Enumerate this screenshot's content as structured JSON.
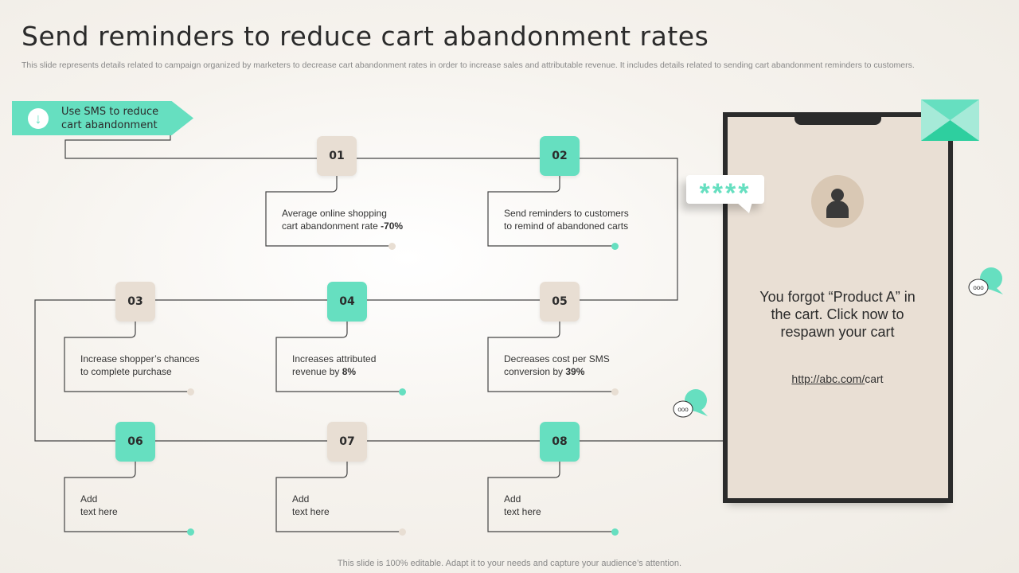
{
  "title": "Send reminders to reduce cart abandonment rates",
  "subtitle": "This slide represents details related to campaign organized by marketers to decrease cart abandonment rates in order to increase sales and attributable revenue. It includes details related to sending cart abandonment reminders to customers.",
  "banner": {
    "icon": "arrow-down-circle-icon",
    "line1": "Use SMS to reduce",
    "line2": "cart abandonment"
  },
  "colors": {
    "accent": "#66dfc0",
    "beige": "#e8ded3",
    "dark": "#2b2b2b"
  },
  "steps": [
    {
      "num": "01",
      "line1": "Average  online  shopping",
      "line2": "cart abandonment  rate ",
      "bold": "-70%"
    },
    {
      "num": "02",
      "line1": "Send reminders  to customers",
      "line2": "to remind of abandoned carts",
      "bold": ""
    },
    {
      "num": "03",
      "line1": "Increase shopper’s  chances",
      "line2": "to complete purchase",
      "bold": ""
    },
    {
      "num": "04",
      "line1": "Increases attributed",
      "line2": "revenue  by ",
      "bold": "8%"
    },
    {
      "num": "05",
      "line1": "Decreases cost per SMS",
      "line2": "conversion  by ",
      "bold": "39%"
    },
    {
      "num": "06",
      "line1": "Add",
      "line2": "text here",
      "bold": ""
    },
    {
      "num": "07",
      "line1": "Add",
      "line2": "text here",
      "bold": ""
    },
    {
      "num": "08",
      "line1": "Add",
      "line2": "text here",
      "bold": ""
    }
  ],
  "phone": {
    "password": "****",
    "message": "You forgot “Product A” in the cart. Click now to respawn your cart",
    "link_underlined": "http://abc.com/",
    "link_rest": "cart"
  },
  "footer": "This slide is 100% editable. Adapt it to your needs and capture your audience’s attention."
}
